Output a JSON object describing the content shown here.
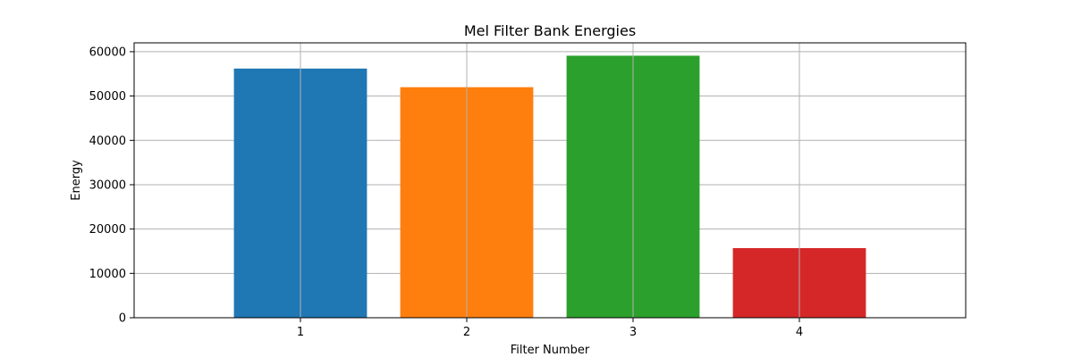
{
  "chart_data": {
    "type": "bar",
    "title": "Mel Filter Bank Energies",
    "xlabel": "Filter Number",
    "ylabel": "Energy",
    "categories": [
      "1",
      "2",
      "3",
      "4"
    ],
    "values": [
      56200,
      52000,
      59100,
      15700
    ],
    "colors": [
      "#1f77b4",
      "#ff7f0e",
      "#2ca02c",
      "#d62728"
    ],
    "ylim": [
      0,
      62000
    ],
    "yticks": [
      0,
      10000,
      20000,
      30000,
      40000,
      50000,
      60000
    ],
    "ytick_labels": [
      "0",
      "10000",
      "20000",
      "30000",
      "40000",
      "50000",
      "60000"
    ],
    "grid": true,
    "grid_color": "#b0b0b0"
  }
}
